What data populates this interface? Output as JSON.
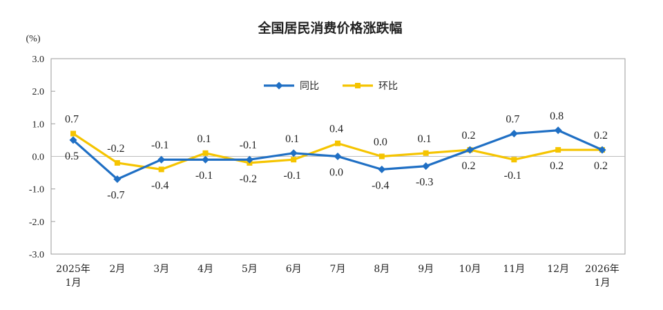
{
  "chart_data": {
    "type": "line",
    "title": "全国居民消费价格涨跌幅",
    "unit": "(%)",
    "categories": [
      [
        "2025年",
        "1月"
      ],
      [
        "2月"
      ],
      [
        "3月"
      ],
      [
        "4月"
      ],
      [
        "5月"
      ],
      [
        "6月"
      ],
      [
        "7月"
      ],
      [
        "8月"
      ],
      [
        "9月"
      ],
      [
        "10月"
      ],
      [
        "11月"
      ],
      [
        "12月"
      ],
      [
        "2026年",
        "1月"
      ]
    ],
    "yticks": [
      "3.0",
      "2.0",
      "1.0",
      "0.0",
      "-1.0",
      "-2.0",
      "-3.0"
    ],
    "ylim": [
      -3.0,
      3.0
    ],
    "legend_position": "top-center",
    "grid": false,
    "series": [
      {
        "name": "同比",
        "color": "#1f6fc4",
        "marker": "diamond",
        "values": [
          0.5,
          -0.7,
          -0.1,
          -0.1,
          -0.1,
          0.1,
          0.0,
          -0.4,
          -0.3,
          0.2,
          0.7,
          0.8,
          0.2
        ],
        "labels": [
          "0.5",
          "-0.7",
          "-0.1",
          "-0.1",
          "-0.1",
          "0.1",
          "0.0",
          "-0.4",
          "-0.3",
          "0.2",
          "0.7",
          "0.8",
          "0.2"
        ]
      },
      {
        "name": "环比",
        "color": "#f5c400",
        "marker": "square",
        "values": [
          0.7,
          -0.2,
          -0.4,
          0.1,
          -0.2,
          -0.1,
          0.4,
          0.0,
          0.1,
          0.2,
          -0.1,
          0.2,
          0.2
        ],
        "labels": [
          "0.7",
          "-0.2",
          "-0.4",
          "0.1",
          "-0.2",
          "-0.1",
          "0.4",
          "0.0",
          "0.1",
          "0.2",
          "-0.1",
          "0.2",
          "0.2"
        ]
      }
    ]
  }
}
